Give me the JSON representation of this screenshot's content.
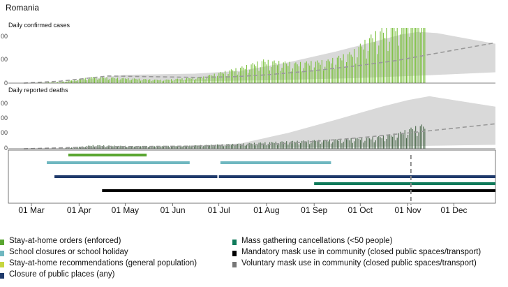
{
  "header": {
    "country": "Romania",
    "cases_title": "Daily confirmed cases",
    "deaths_title": "Daily reported deaths"
  },
  "chart_data": [
    {
      "type": "bar",
      "panel": "cases",
      "title": "Daily confirmed cases",
      "x_range": [
        "2020-02-15",
        "2020-12-28"
      ],
      "x_ticks": [
        "01 Mar",
        "01 Apr",
        "01 May",
        "01 Jun",
        "01 Jul",
        "01 Aug",
        "01 Sep",
        "01 Oct",
        "01 Nov",
        "01 Dec"
      ],
      "y_tick_labels": [
        "0",
        "00",
        "00"
      ],
      "bar_color": "#7cc13f",
      "projection": {
        "style": "dashed line with grey band",
        "line_color": "#999999",
        "band_color": "#d9d9d9",
        "mean": [
          {
            "x": "2020-02-25",
            "y": 0
          },
          {
            "x": "2020-03-20",
            "y": 100
          },
          {
            "x": "2020-04-20",
            "y": 360
          },
          {
            "x": "2020-05-15",
            "y": 330
          },
          {
            "x": "2020-06-15",
            "y": 290
          },
          {
            "x": "2020-07-10",
            "y": 320
          },
          {
            "x": "2020-08-01",
            "y": 420
          },
          {
            "x": "2020-09-01",
            "y": 630
          },
          {
            "x": "2020-10-01",
            "y": 900
          },
          {
            "x": "2020-10-25",
            "y": 1150
          },
          {
            "x": "2020-11-15",
            "y": 1450
          },
          {
            "x": "2020-12-05",
            "y": 1730
          },
          {
            "x": "2020-12-28",
            "y": 2050
          }
        ],
        "band_upper": [
          {
            "x": "2020-03-20",
            "y": 40
          },
          {
            "x": "2020-05-01",
            "y": 420
          },
          {
            "x": "2020-06-15",
            "y": 480
          },
          {
            "x": "2020-07-15",
            "y": 620
          },
          {
            "x": "2020-08-15",
            "y": 1050
          },
          {
            "x": "2020-09-15",
            "y": 1600
          },
          {
            "x": "2020-10-15",
            "y": 2200
          },
          {
            "x": "2020-10-28",
            "y": 2470
          },
          {
            "x": "2020-11-08",
            "y": 2600
          },
          {
            "x": "2020-11-20",
            "y": 2540
          },
          {
            "x": "2020-12-10",
            "y": 2250
          },
          {
            "x": "2020-12-28",
            "y": 2000
          }
        ],
        "band_lower": [
          {
            "x": "2020-12-28",
            "y": 550
          },
          {
            "x": "2020-11-15",
            "y": 400
          },
          {
            "x": "2020-10-01",
            "y": 260
          },
          {
            "x": "2020-08-01",
            "y": 140
          },
          {
            "x": "2020-06-01",
            "y": 80
          },
          {
            "x": "2020-04-20",
            "y": 40
          },
          {
            "x": "2020-03-20",
            "y": 0
          }
        ]
      },
      "ylim": [
        0,
        2800
      ],
      "daily_values_source": "generated by script from anchor points",
      "daily_anchor_points": [
        {
          "x": "2020-03-01",
          "y": 0
        },
        {
          "x": "2020-03-20",
          "y": 60
        },
        {
          "x": "2020-04-10",
          "y": 330
        },
        {
          "x": "2020-05-01",
          "y": 260
        },
        {
          "x": "2020-05-25",
          "y": 170
        },
        {
          "x": "2020-06-20",
          "y": 320
        },
        {
          "x": "2020-07-15",
          "y": 820
        },
        {
          "x": "2020-07-30",
          "y": 1200
        },
        {
          "x": "2020-08-20",
          "y": 1050
        },
        {
          "x": "2020-09-10",
          "y": 1200
        },
        {
          "x": "2020-09-25",
          "y": 1600
        },
        {
          "x": "2020-10-10",
          "y": 2600
        },
        {
          "x": "2020-10-20",
          "y": 3000
        },
        {
          "x": "2020-10-28",
          "y": 3600
        },
        {
          "x": "2020-11-03",
          "y": 4400
        },
        {
          "x": "2020-11-08",
          "y": 4800
        },
        {
          "x": "2020-11-12",
          "y": 4200
        }
      ]
    },
    {
      "type": "bar",
      "panel": "deaths",
      "title": "Daily reported deaths",
      "x_range": [
        "2020-02-15",
        "2020-12-28"
      ],
      "y_tick_labels": [
        "0",
        "00",
        "00",
        "00"
      ],
      "bar_color": "#4d6b4d",
      "projection": {
        "style": "dashed line with grey band",
        "line_color": "#999999",
        "band_color": "#d9d9d9",
        "mean": [
          {
            "x": "2020-02-25",
            "y": 0
          },
          {
            "x": "2020-04-20",
            "y": 8
          },
          {
            "x": "2020-06-15",
            "y": 10
          },
          {
            "x": "2020-08-01",
            "y": 16
          },
          {
            "x": "2020-09-01",
            "y": 28
          },
          {
            "x": "2020-10-01",
            "y": 42
          },
          {
            "x": "2020-11-01",
            "y": 60
          },
          {
            "x": "2020-12-01",
            "y": 78
          },
          {
            "x": "2020-12-28",
            "y": 95
          }
        ],
        "band_upper": [
          {
            "x": "2020-04-01",
            "y": 5
          },
          {
            "x": "2020-06-01",
            "y": 8
          },
          {
            "x": "2020-07-15",
            "y": 20
          },
          {
            "x": "2020-08-15",
            "y": 60
          },
          {
            "x": "2020-09-15",
            "y": 110
          },
          {
            "x": "2020-10-15",
            "y": 160
          },
          {
            "x": "2020-11-01",
            "y": 185
          },
          {
            "x": "2020-11-15",
            "y": 200
          },
          {
            "x": "2020-12-01",
            "y": 185
          },
          {
            "x": "2020-12-28",
            "y": 160
          }
        ],
        "band_lower": [
          {
            "x": "2020-12-28",
            "y": 15
          },
          {
            "x": "2020-11-01",
            "y": 10
          },
          {
            "x": "2020-09-01",
            "y": 5
          },
          {
            "x": "2020-06-01",
            "y": 2
          },
          {
            "x": "2020-04-01",
            "y": 0
          }
        ]
      },
      "ylim": [
        0,
        210
      ],
      "daily_values_source": "generated by script from anchor points",
      "daily_anchor_points": [
        {
          "x": "2020-03-20",
          "y": 0
        },
        {
          "x": "2020-04-10",
          "y": 14
        },
        {
          "x": "2020-05-10",
          "y": 10
        },
        {
          "x": "2020-06-10",
          "y": 12
        },
        {
          "x": "2020-07-15",
          "y": 20
        },
        {
          "x": "2020-08-10",
          "y": 28
        },
        {
          "x": "2020-09-10",
          "y": 35
        },
        {
          "x": "2020-10-10",
          "y": 45
        },
        {
          "x": "2020-10-25",
          "y": 60
        },
        {
          "x": "2020-11-05",
          "y": 85
        },
        {
          "x": "2020-11-12",
          "y": 95
        }
      ]
    },
    {
      "type": "timeline",
      "panel": "interventions",
      "current_date_marker": "2020-11-03",
      "bars": [
        {
          "measure": "Stay-at-home orders (enforced)",
          "start": "2020-03-25",
          "end": "2020-05-15",
          "color": "#5aa631"
        },
        {
          "measure": "School closures or school holiday",
          "start": "2020-03-11",
          "end": "2020-06-12",
          "color": "#6fb7c0"
        },
        {
          "measure": "School closures or school holiday",
          "start": "2020-07-02",
          "end": "2020-09-12",
          "color": "#6fb7c0"
        },
        {
          "measure": "Closure of public places (any)",
          "start": "2020-03-16",
          "end": "2020-06-30",
          "color": "#1f3a6b"
        },
        {
          "measure": "Closure of public places (any)",
          "start": "2020-07-01",
          "end": "2020-12-28",
          "color": "#1f3a6b"
        },
        {
          "measure": "Mass gathering cancellations (<50 people)",
          "start": "2020-09-01",
          "end": "2020-12-28",
          "color": "#0f7a5a"
        },
        {
          "measure": "Mandatory mask use in community (closed public spaces/transport)",
          "start": "2020-04-16",
          "end": "2020-12-28",
          "color": "#000000"
        }
      ]
    }
  ],
  "legend": {
    "items": [
      {
        "label": "Stay-at-home orders (enforced)",
        "color": "#5aa631"
      },
      {
        "label": "School closures or school holiday",
        "color": "#6fb7c0"
      },
      {
        "label": "Stay-at-home recommendations (general population)",
        "color": "#c6d63f"
      },
      {
        "label": "Closure of public places (any)",
        "color": "#1f3a6b"
      },
      {
        "label": "Mass gathering cancellations (<50 people)",
        "color": "#0f7a5a"
      },
      {
        "label": "Mandatory mask use in community (closed public spaces/transport)",
        "color": "#000000"
      },
      {
        "label": "Voluntary mask use in community (closed public spaces/transport)",
        "color": "#777777"
      }
    ]
  }
}
